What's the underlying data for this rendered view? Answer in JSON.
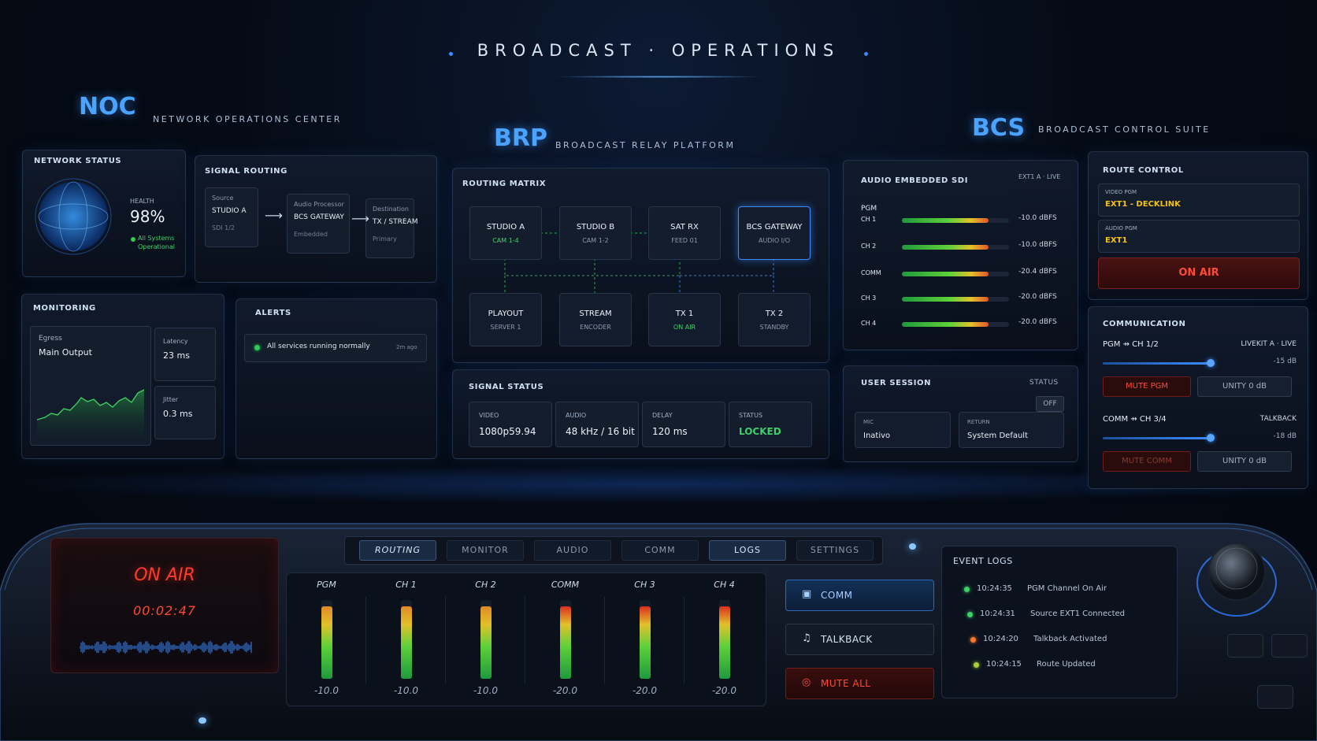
{
  "header": {
    "title": "BROADCAST · OPERATIONS"
  },
  "sections": {
    "noc": {
      "abbr": "NOC",
      "name": "NETWORK OPERATIONS CENTER"
    },
    "brp": {
      "abbr": "BRP",
      "name": "BROADCAST RELAY PLATFORM"
    },
    "bcs": {
      "abbr": "BCS",
      "name": "BROADCAST CONTROL SUITE"
    }
  },
  "network_status": {
    "title": "NETWORK STATUS",
    "health_label": "HEALTH",
    "health": "98%",
    "status": "All Systems Operational"
  },
  "signal_routing": {
    "title": "SIGNAL ROUTING",
    "nodes": [
      {
        "label": "Source",
        "name": "STUDIO A",
        "sub": "SDI 1/2"
      },
      {
        "label": "Audio Processor",
        "name": "BCS GATEWAY",
        "sub": "Embedded"
      },
      {
        "label": "Destination",
        "name": "TX / STREAM",
        "sub": "Primary"
      }
    ]
  },
  "monitoring": {
    "title": "MONITORING",
    "egress_label": "Egress",
    "egress": "Main Output",
    "latency_label": "Latency",
    "latency": "23 ms",
    "jitter_label": "Jitter",
    "jitter": "0.3 ms"
  },
  "alerts": {
    "title": "ALERTS",
    "items": [
      {
        "text": "All services running normally",
        "time": "2m ago"
      }
    ]
  },
  "routing_matrix": {
    "title": "ROUTING MATRIX",
    "nodes": [
      {
        "name": "STUDIO A",
        "sub": "CAM 1-4"
      },
      {
        "name": "STUDIO B",
        "sub": "CAM 1-2"
      },
      {
        "name": "SAT RX",
        "sub": "FEED 01"
      },
      {
        "name": "BCS GATEWAY",
        "sub": "AUDIO I/O"
      },
      {
        "name": "PLAYOUT",
        "sub": "SERVER 1"
      },
      {
        "name": "STREAM",
        "sub": "ENCODER"
      },
      {
        "name": "TX 1",
        "sub": "ON AIR"
      },
      {
        "name": "TX 2",
        "sub": "STANDBY"
      }
    ]
  },
  "signal_status": {
    "title": "SIGNAL STATUS",
    "fields": [
      {
        "label": "VIDEO",
        "value": "1080p59.94"
      },
      {
        "label": "AUDIO",
        "value": "48 kHz / 16 bit"
      },
      {
        "label": "DELAY",
        "value": "120 ms"
      },
      {
        "label": "STATUS",
        "value": "LOCKED"
      }
    ]
  },
  "audio_sdi": {
    "title": "AUDIO EMBEDDED SDI",
    "source": "EXT1 A · LIVE",
    "group": "PGM",
    "channels": [
      {
        "name": "CH 1",
        "level": "-10.0 dBFS"
      },
      {
        "name": "CH 2",
        "level": "-10.0 dBFS"
      },
      {
        "name": "COMM",
        "level": "-20.4 dBFS"
      },
      {
        "name": "CH 3",
        "level": "-20.0 dBFS"
      },
      {
        "name": "CH 4",
        "level": "-20.0 dBFS"
      }
    ]
  },
  "user_session": {
    "title": "USER SESSION",
    "status_label": "STATUS",
    "status": "OFF",
    "mic_label": "MIC",
    "mic": "Inativo",
    "return_label": "RETURN",
    "return": "System Default"
  },
  "route_control": {
    "title": "ROUTE CONTROL",
    "video_label": "VIDEO PGM",
    "video": "EXT1 - DECKLINK",
    "audio_label": "AUDIO PGM",
    "audio": "EXT1",
    "on_air": "ON AIR"
  },
  "communication": {
    "title": "COMMUNICATION",
    "lines": [
      {
        "name": "PGM ⇸ CH 1/2",
        "source": "LIVEKIT A · LIVE",
        "level": "-15 dB",
        "mute": "MUTE PGM",
        "unity": "UNITY 0 dB"
      },
      {
        "name": "COMM ⇸ CH 3/4",
        "source": "TALKBACK",
        "level": "-18 dB",
        "mute": "MUTE COMM",
        "unity": "UNITY 0 dB"
      }
    ]
  },
  "console": {
    "on_air": "ON AIR",
    "timer": "00:02:47",
    "tabs": [
      "ROUTING",
      "MONITOR",
      "AUDIO",
      "COMM",
      "LOGS",
      "SETTINGS"
    ],
    "mixer": [
      {
        "name": "PGM",
        "level": "-10.0"
      },
      {
        "name": "CH 1",
        "level": "-10.0"
      },
      {
        "name": "CH 2",
        "level": "-10.0"
      },
      {
        "name": "COMM",
        "level": "-20.0"
      },
      {
        "name": "CH 3",
        "level": "-20.0"
      },
      {
        "name": "CH 4",
        "level": "-20.0"
      }
    ],
    "buttons": [
      "COMM",
      "TALKBACK",
      "MUTE ALL"
    ],
    "event_logs": {
      "title": "EVENT LOGS",
      "items": [
        {
          "time": "10:24:35",
          "text": "PGM Channel On Air"
        },
        {
          "time": "10:24:31",
          "text": "Source EXT1 Connected"
        },
        {
          "time": "10:24:20",
          "text": "Talkback Activated"
        },
        {
          "time": "10:24:15",
          "text": "Route Updated"
        }
      ]
    }
  }
}
